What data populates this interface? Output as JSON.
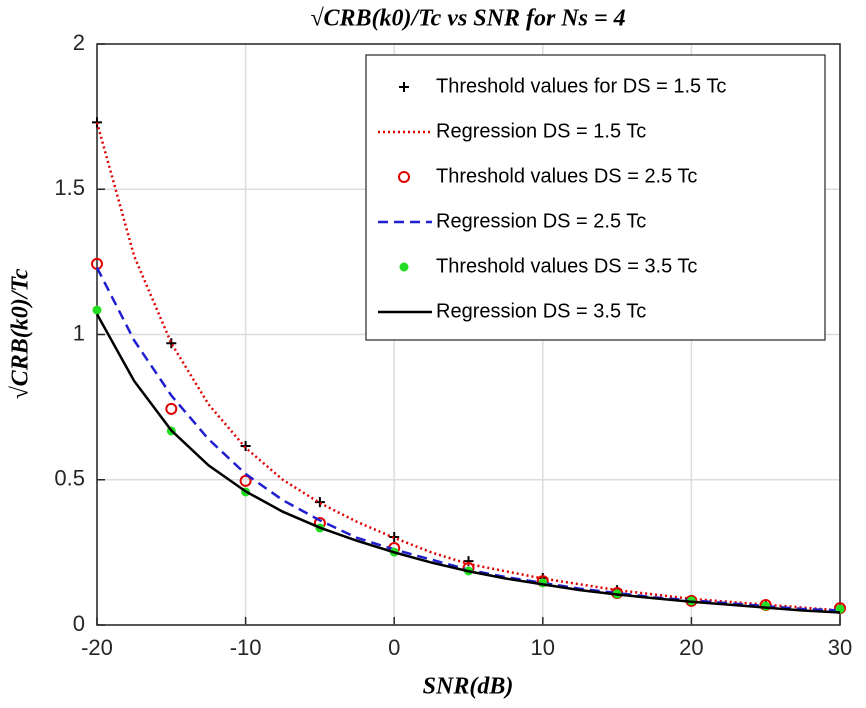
{
  "chart_data": {
    "type": "line",
    "title": "√CRB(k0)/Tc vs SNR for Ns = 4",
    "xlabel": "SNR(dB)",
    "ylabel": "√CRB(k0)/Tc",
    "xlim": [
      -20,
      30
    ],
    "xticks": [
      -20,
      -10,
      0,
      10,
      20,
      30
    ],
    "ylim": [
      0,
      2
    ],
    "yticks": [
      0,
      0.5,
      1,
      1.5,
      2
    ],
    "grid": true,
    "legend_location": "upper right",
    "series": [
      {
        "name": "Threshold values for DS = 1.5 Tc",
        "color": "#000000",
        "marker": "+",
        "linestyle": "none",
        "x": [
          -20,
          -15,
          -10,
          -5,
          0,
          5,
          10,
          15,
          20,
          25,
          30
        ],
        "values": [
          1.73,
          0.97,
          0.616,
          0.423,
          0.303,
          0.22,
          0.162,
          0.12,
          0.086,
          0.069,
          0.055
        ]
      },
      {
        "name": "Regression DS = 1.5 Tc",
        "color": "#e00000",
        "marker": "none",
        "linestyle": "dotted",
        "x": [
          -20,
          -17.5,
          -15,
          -12.5,
          -10,
          -7.5,
          -5,
          -2.5,
          0,
          2.5,
          5,
          7.5,
          10,
          12.5,
          15,
          17.5,
          20,
          22.5,
          25,
          27.5,
          30
        ],
        "values": [
          1.73,
          1.27,
          0.97,
          0.76,
          0.61,
          0.5,
          0.42,
          0.355,
          0.3,
          0.25,
          0.21,
          0.185,
          0.16,
          0.14,
          0.12,
          0.105,
          0.09,
          0.08,
          0.07,
          0.06,
          0.05
        ]
      },
      {
        "name": "Threshold values DS = 2.5 Tc",
        "color": "#e00000",
        "marker": "o",
        "linestyle": "none",
        "x": [
          -20,
          -15,
          -10,
          -5,
          0,
          5,
          10,
          15,
          20,
          25,
          30
        ],
        "values": [
          1.243,
          0.744,
          0.496,
          0.351,
          0.265,
          0.196,
          0.151,
          0.11,
          0.083,
          0.069,
          0.058
        ]
      },
      {
        "name": "Regression DS = 2.5 Tc",
        "color": "#1f1fd0",
        "marker": "none",
        "linestyle": "dashed",
        "x": [
          -20,
          -17.5,
          -15,
          -12.5,
          -10,
          -7.5,
          -5,
          -2.5,
          0,
          2.5,
          5,
          7.5,
          10,
          12.5,
          15,
          17.5,
          20,
          22.5,
          25,
          27.5,
          30
        ],
        "values": [
          1.23,
          0.98,
          0.79,
          0.64,
          0.52,
          0.43,
          0.36,
          0.3,
          0.26,
          0.225,
          0.19,
          0.165,
          0.145,
          0.125,
          0.11,
          0.095,
          0.085,
          0.075,
          0.065,
          0.055,
          0.05
        ]
      },
      {
        "name": "Threshold values DS = 3.5 Tc",
        "color": "#22dd22",
        "marker": ".",
        "linestyle": "none",
        "x": [
          -20,
          -15,
          -10,
          -5,
          0,
          5,
          10,
          15,
          20,
          25,
          30
        ],
        "values": [
          1.084,
          0.668,
          0.458,
          0.334,
          0.251,
          0.186,
          0.145,
          0.107,
          0.083,
          0.065,
          0.055
        ]
      },
      {
        "name": "Regression DS = 3.5 Tc",
        "color": "#000000",
        "marker": "none",
        "linestyle": "solid",
        "x": [
          -20,
          -17.5,
          -15,
          -12.5,
          -10,
          -7.5,
          -5,
          -2.5,
          0,
          2.5,
          5,
          7.5,
          10,
          12.5,
          15,
          17.5,
          20,
          22.5,
          25,
          27.5,
          30
        ],
        "values": [
          1.07,
          0.84,
          0.67,
          0.55,
          0.46,
          0.39,
          0.335,
          0.29,
          0.25,
          0.215,
          0.185,
          0.16,
          0.14,
          0.12,
          0.105,
          0.092,
          0.08,
          0.07,
          0.06,
          0.05,
          0.043
        ]
      }
    ]
  }
}
